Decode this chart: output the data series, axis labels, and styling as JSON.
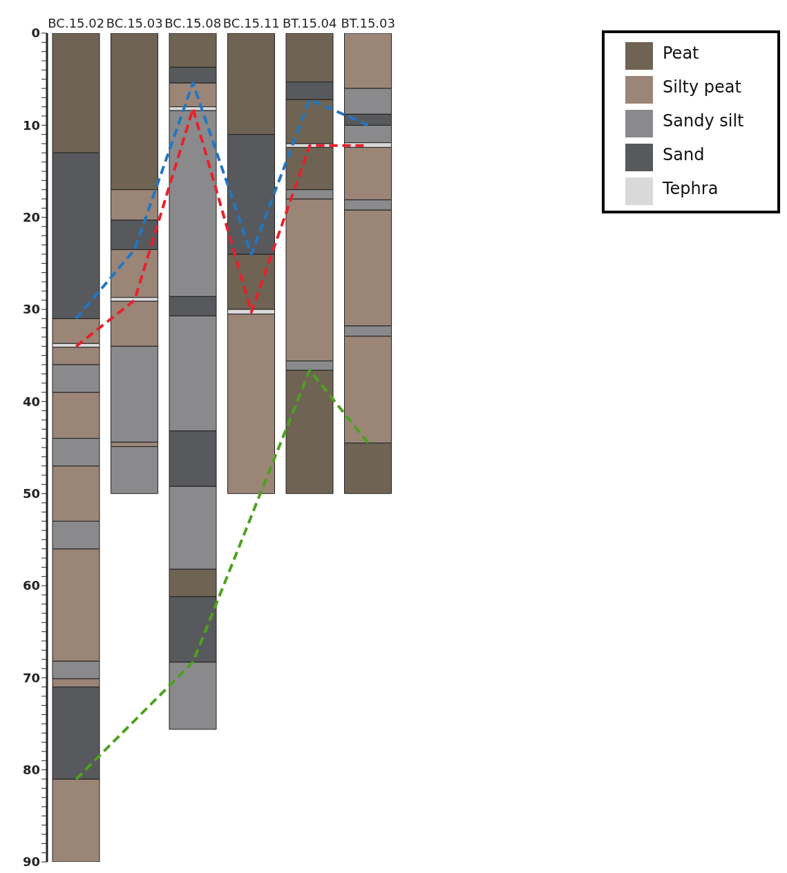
{
  "chart_data": {
    "type": "bar",
    "categories": [
      "BC.15.02",
      "BC.15.03",
      "BC.15.08",
      "BC.15.11",
      "BT.15.04",
      "BT.15.03"
    ],
    "ylim": [
      90,
      0
    ],
    "yticks": [
      0,
      {
        "value": 1,
        "label": null
      },
      {
        "value": 2,
        "label": null
      },
      {
        "value": 3,
        "label": null
      },
      {
        "value": 4,
        "label": null
      },
      {
        "value": 5,
        "label": null
      },
      {
        "value": 6,
        "label": null
      },
      {
        "value": 7,
        "label": null
      },
      {
        "value": 8,
        "label": null
      },
      {
        "value": 9,
        "label": null
      },
      10,
      {
        "value": 11,
        "label": null
      },
      {
        "value": 12,
        "label": null
      },
      {
        "value": 13,
        "label": null
      },
      {
        "value": 14,
        "label": null
      },
      {
        "value": 15,
        "label": null
      },
      {
        "value": 16,
        "label": null
      },
      {
        "value": 17,
        "label": null
      },
      {
        "value": 18,
        "label": null
      },
      {
        "value": 19,
        "label": null
      },
      20,
      {
        "value": 21,
        "label": null
      },
      {
        "value": 22,
        "label": null
      },
      {
        "value": 23,
        "label": null
      },
      {
        "value": 24,
        "label": null
      },
      {
        "value": 25,
        "label": null
      },
      {
        "value": 26,
        "label": null
      },
      {
        "value": 27,
        "label": null
      },
      {
        "value": 28,
        "label": null
      },
      {
        "value": 29,
        "label": null
      },
      30,
      {
        "value": 31,
        "label": null
      },
      {
        "value": 32,
        "label": null
      },
      {
        "value": 33,
        "label": null
      },
      {
        "value": 34,
        "label": null
      },
      {
        "value": 35,
        "label": null
      },
      {
        "value": 36,
        "label": null
      },
      {
        "value": 37,
        "label": null
      },
      {
        "value": 38,
        "label": null
      },
      {
        "value": 39,
        "label": null
      },
      40,
      {
        "value": 41,
        "label": null
      },
      {
        "value": 42,
        "label": null
      },
      {
        "value": 43,
        "label": null
      },
      {
        "value": 44,
        "label": null
      },
      {
        "value": 45,
        "label": null
      },
      {
        "value": 46,
        "label": null
      },
      {
        "value": 47,
        "label": null
      },
      {
        "value": 48,
        "label": null
      },
      {
        "value": 49,
        "label": null
      },
      50,
      {
        "value": 51,
        "label": null
      },
      {
        "value": 52,
        "label": null
      },
      {
        "value": 53,
        "label": null
      },
      {
        "value": 54,
        "label": null
      },
      {
        "value": 55,
        "label": null
      },
      {
        "value": 56,
        "label": null
      },
      {
        "value": 57,
        "label": null
      },
      {
        "value": 58,
        "label": null
      },
      {
        "value": 59,
        "label": null
      },
      60,
      {
        "value": 61,
        "label": null
      },
      {
        "value": 62,
        "label": null
      },
      {
        "value": 63,
        "label": null
      },
      {
        "value": 64,
        "label": null
      },
      {
        "value": 65,
        "label": null
      },
      {
        "value": 66,
        "label": null
      },
      {
        "value": 67,
        "label": null
      },
      {
        "value": 68,
        "label": null
      },
      {
        "value": 69,
        "label": null
      },
      70,
      {
        "value": 71,
        "label": null
      },
      {
        "value": 72,
        "label": null
      },
      {
        "value": 73,
        "label": null
      },
      {
        "value": 74,
        "label": null
      },
      {
        "value": 75,
        "label": null
      },
      {
        "value": 76,
        "label": null
      },
      {
        "value": 77,
        "label": null
      },
      {
        "value": 78,
        "label": null
      },
      {
        "value": 79,
        "label": null
      },
      80,
      {
        "value": 81,
        "label": null
      },
      {
        "value": 82,
        "label": null
      },
      {
        "value": 83,
        "label": null
      },
      {
        "value": 84,
        "label": null
      },
      {
        "value": 85,
        "label": null
      },
      {
        "value": 86,
        "label": null
      },
      {
        "value": 87,
        "label": null
      },
      {
        "value": 88,
        "label": null
      },
      {
        "value": 89,
        "label": null
      },
      90
    ],
    "grid": false,
    "legend": "top right",
    "marker": "none",
    "line_style": "dashed",
    "series": [
      {
        "name": "Peat",
        "color": "#6f6354",
        "base": [
          0,
          0,
          0,
          0,
          0,
          44.5
        ],
        "values": [
          13,
          17,
          3.7,
          11,
          5.3,
          5.5
        ]
      },
      {
        "color": "#6f6354",
        "base": [
          null,
          null,
          58.2,
          24,
          7.2,
          null
        ],
        "values": [
          null,
          null,
          3,
          6,
          4.8,
          null
        ]
      },
      {
        "color": "#6f6354",
        "base": [
          null,
          null,
          null,
          null,
          12.4,
          null
        ],
        "values": [
          null,
          null,
          null,
          null,
          4.6,
          null
        ]
      },
      {
        "color": "#6f6354",
        "base": [
          null,
          null,
          null,
          null,
          36.6,
          null
        ],
        "values": [
          null,
          null,
          null,
          null,
          13.4,
          null
        ]
      },
      {
        "name": "Silty peat",
        "color": "#9a8577",
        "base": [
          31,
          17,
          5.4,
          30.5,
          18,
          0
        ],
        "values": [
          2.7,
          3.3,
          2.6,
          19.5,
          17.6,
          6
        ]
      },
      {
        "color": "#9a8577",
        "base": [
          34.1,
          23.5,
          null,
          null,
          null,
          12.4
        ],
        "values": [
          1.9,
          5.2,
          null,
          null,
          null,
          5.7
        ]
      },
      {
        "color": "#9a8577",
        "base": [
          39,
          29.1,
          null,
          null,
          null,
          19.2
        ],
        "values": [
          5,
          4.9,
          null,
          null,
          null,
          12.6
        ]
      },
      {
        "color": "#9a8577",
        "base": [
          47,
          44.4,
          null,
          null,
          null,
          32.9
        ],
        "values": [
          6,
          0.5,
          null,
          null,
          null,
          11.6
        ]
      },
      {
        "color": "#9a8577",
        "base": [
          56,
          null,
          null,
          null,
          null,
          null
        ],
        "values": [
          12.2,
          null,
          null,
          null,
          null,
          null
        ]
      },
      {
        "color": "#9a8577",
        "base": [
          70.1,
          null,
          null,
          null,
          null,
          null
        ],
        "values": [
          0.9,
          null,
          null,
          null,
          null,
          null
        ]
      },
      {
        "color": "#9a8577",
        "base": [
          81,
          null,
          null,
          null,
          null,
          null
        ],
        "values": [
          9,
          null,
          null,
          null,
          null,
          null
        ]
      },
      {
        "name": "Sandy silt",
        "color": "#8a8a8c",
        "base": [
          36,
          34,
          8.4,
          null,
          17,
          6
        ],
        "values": [
          3,
          10.4,
          20.2,
          null,
          1,
          2.8
        ]
      },
      {
        "color": "#8a8a8c",
        "base": [
          44,
          44.9,
          30.7,
          null,
          35.6,
          10
        ],
        "values": [
          3,
          5.1,
          12.5,
          null,
          1,
          1.9
        ]
      },
      {
        "color": "#8a8a8c",
        "base": [
          53,
          null,
          49.2,
          null,
          null,
          18.1
        ],
        "values": [
          3,
          null,
          9,
          null,
          null,
          1.1
        ]
      },
      {
        "color": "#8a8a8c",
        "base": [
          68.2,
          null,
          68.3,
          null,
          null,
          31.8
        ],
        "values": [
          1.9,
          null,
          7.3,
          null,
          null,
          1.1
        ]
      },
      {
        "name": "Sand",
        "color": "#58595d",
        "base": [
          13,
          20.3,
          3.7,
          11,
          5.3,
          8.8
        ],
        "values": [
          18,
          3.2,
          1.7,
          13,
          1.9,
          1.2
        ]
      },
      {
        "color": "#58595d",
        "base": [
          71,
          null,
          28.6,
          null,
          null,
          null
        ],
        "values": [
          10,
          null,
          2.1,
          null,
          null,
          null
        ]
      },
      {
        "color": "#58595d",
        "base": [
          null,
          null,
          43.2,
          null,
          null,
          null
        ],
        "values": [
          null,
          null,
          6,
          null,
          null,
          null
        ]
      },
      {
        "color": "#58595d",
        "base": [
          null,
          null,
          61.2,
          null,
          null,
          null
        ],
        "values": [
          null,
          null,
          7.1,
          null,
          null,
          null
        ]
      },
      {
        "name": "Tephra",
        "color": "#d9d9d9",
        "base": [
          33.7,
          28.7,
          8,
          30,
          12,
          11.9
        ],
        "values": [
          0.4,
          0.4,
          0.4,
          0.5,
          0.4,
          0.5
        ]
      },
      {
        "type": "line",
        "color": "#1f77c4",
        "values": [
          31,
          23.5,
          5.4,
          24,
          7.2,
          10
        ]
      },
      {
        "type": "line",
        "color": "#e8202a",
        "values": [
          34,
          29,
          8.2,
          30.3,
          12.2,
          12.2
        ]
      },
      {
        "type": "line",
        "color": "#4ca21e",
        "values": [
          81,
          null,
          68.3,
          null,
          36.6,
          44.5
        ]
      }
    ]
  }
}
